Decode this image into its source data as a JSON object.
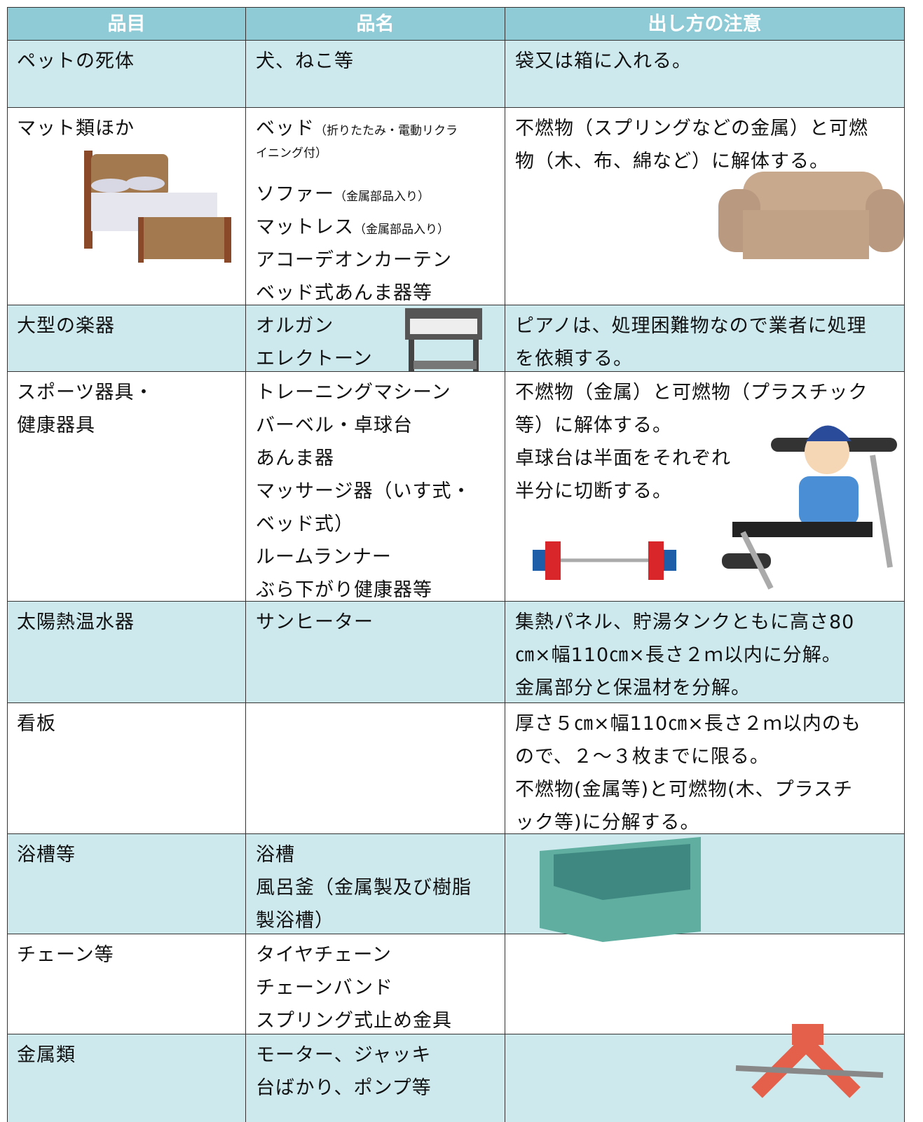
{
  "table": {
    "header": [
      "品目",
      "品名",
      "出し方の注意"
    ],
    "rows": [
      {
        "item": [
          "ペットの死体"
        ],
        "names": [
          {
            "text": "犬、ねこ等"
          }
        ],
        "notes": [
          "袋又は箱に入れる。"
        ]
      },
      {
        "item": [
          "マット類ほか"
        ],
        "names": [
          {
            "text": "ベッド",
            "small": "（折りたたみ・電動リクラ"
          },
          {
            "small": "イニング付）"
          },
          {
            "text": "ソファー",
            "small": "（金属部品入り）"
          },
          {
            "text": "マットレス",
            "small": "（金属部品入り）"
          },
          {
            "text": "アコーデオンカーテン"
          },
          {
            "text": "ベッド式あんま器等"
          }
        ],
        "notes": [
          "不燃物（スプリングなどの金属）と可燃",
          "物（木、布、綿など）に解体する。"
        ]
      },
      {
        "item": [
          "大型の楽器"
        ],
        "names": [
          {
            "text": "オルガン"
          },
          {
            "text": "エレクトーン"
          }
        ],
        "notes": [
          "ピアノは、処理困難物なので業者に処理",
          "を依頼する。"
        ]
      },
      {
        "item": [
          "スポーツ器具・",
          "健康器具"
        ],
        "names": [
          {
            "text": "トレーニングマシーン"
          },
          {
            "text": "バーベル・卓球台"
          },
          {
            "text": "あんま器"
          },
          {
            "text": "マッサージ器（いす式・"
          },
          {
            "text": "ベッド式）"
          },
          {
            "text": "ルームランナー"
          },
          {
            "text": "ぶら下がり健康器等"
          }
        ],
        "notes": [
          "不燃物（金属）と可燃物（プラスチック",
          "等）に解体する。",
          "卓球台は半面をそれぞれ",
          "半分に切断する。"
        ]
      },
      {
        "item": [
          "太陽熱温水器"
        ],
        "names": [
          {
            "text": "サンヒーター"
          }
        ],
        "notes": [
          "集熱パネル、貯湯タンクともに高さ80",
          "㎝×幅110㎝×長さ２ｍ以内に分解。",
          "金属部分と保温材を分解。"
        ]
      },
      {
        "item": [
          "看板"
        ],
        "names": [],
        "notes": [
          "厚さ５㎝×幅110㎝×長さ２ｍ以内のも",
          "ので、２～３枚までに限る。",
          "不燃物(金属等)と可燃物(木、プラスチ",
          "ック等)に分解する。"
        ]
      },
      {
        "item": [
          "浴槽等"
        ],
        "names": [
          {
            "text": "浴槽"
          },
          {
            "text": "風呂釜（金属製及び樹脂"
          },
          {
            "text": "製浴槽）"
          }
        ],
        "notes": []
      },
      {
        "item": [
          "チェーン等"
        ],
        "names": [
          {
            "text": "タイヤチェーン"
          },
          {
            "text": "チェーンバンド"
          },
          {
            "text": "スプリング式止め金具"
          }
        ],
        "notes": []
      },
      {
        "item": [
          "金属類"
        ],
        "names": [
          {
            "text": "モーター、ジャッキ"
          },
          {
            "text": "台ばかり、ポンプ等"
          }
        ],
        "notes": []
      }
    ]
  }
}
